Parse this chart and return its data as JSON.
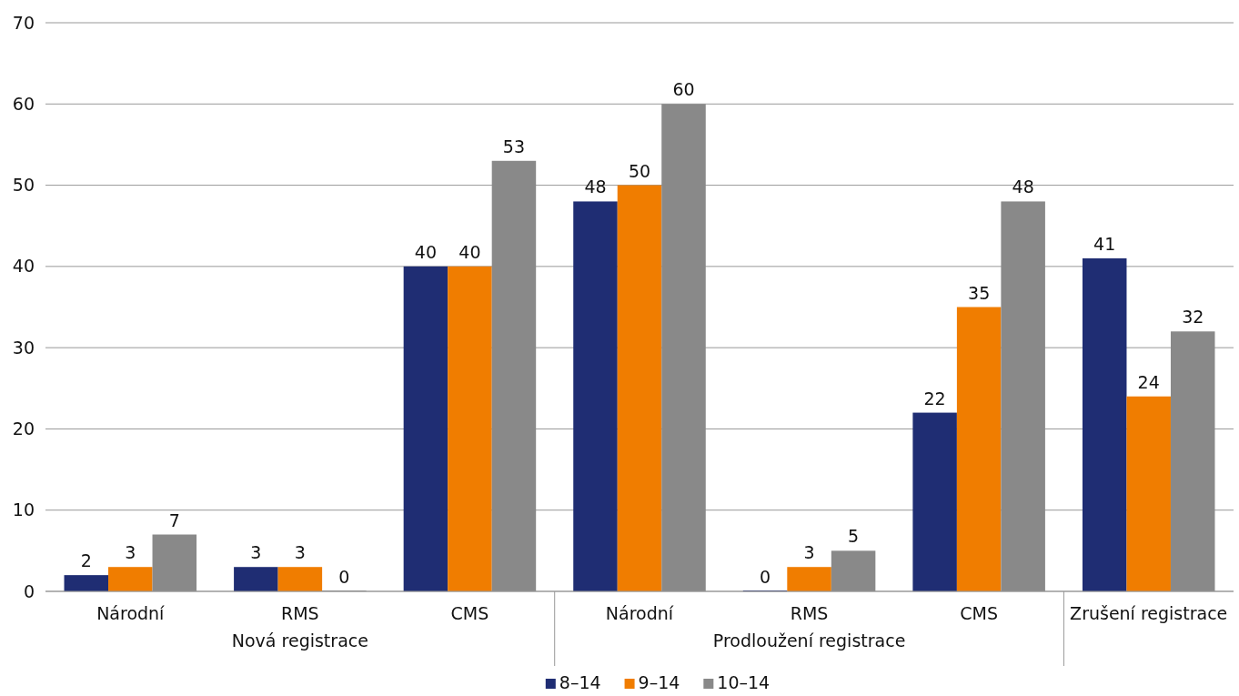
{
  "chart_data": {
    "type": "bar",
    "categories": [
      "Národní",
      "RMS",
      "CMS",
      "Národní",
      "RMS",
      "CMS",
      "Zrušení registrace"
    ],
    "series": [
      {
        "name": "8–14",
        "color": "#1f2d73",
        "values": [
          2,
          3,
          40,
          48,
          0,
          22,
          41
        ]
      },
      {
        "name": "9–14",
        "color": "#f07d00",
        "values": [
          3,
          3,
          40,
          50,
          3,
          35,
          24
        ]
      },
      {
        "name": "10–14",
        "color": "#898989",
        "values": [
          7,
          0,
          53,
          60,
          5,
          48,
          32
        ]
      }
    ],
    "ylim": [
      0,
      70
    ],
    "yticks": [
      0,
      10,
      20,
      30,
      40,
      50,
      60,
      70
    ],
    "grid": "y",
    "legend": "bottom",
    "data_labels": true,
    "annotations": [
      "Nová registrace",
      "Prodloužení registrace"
    ]
  }
}
